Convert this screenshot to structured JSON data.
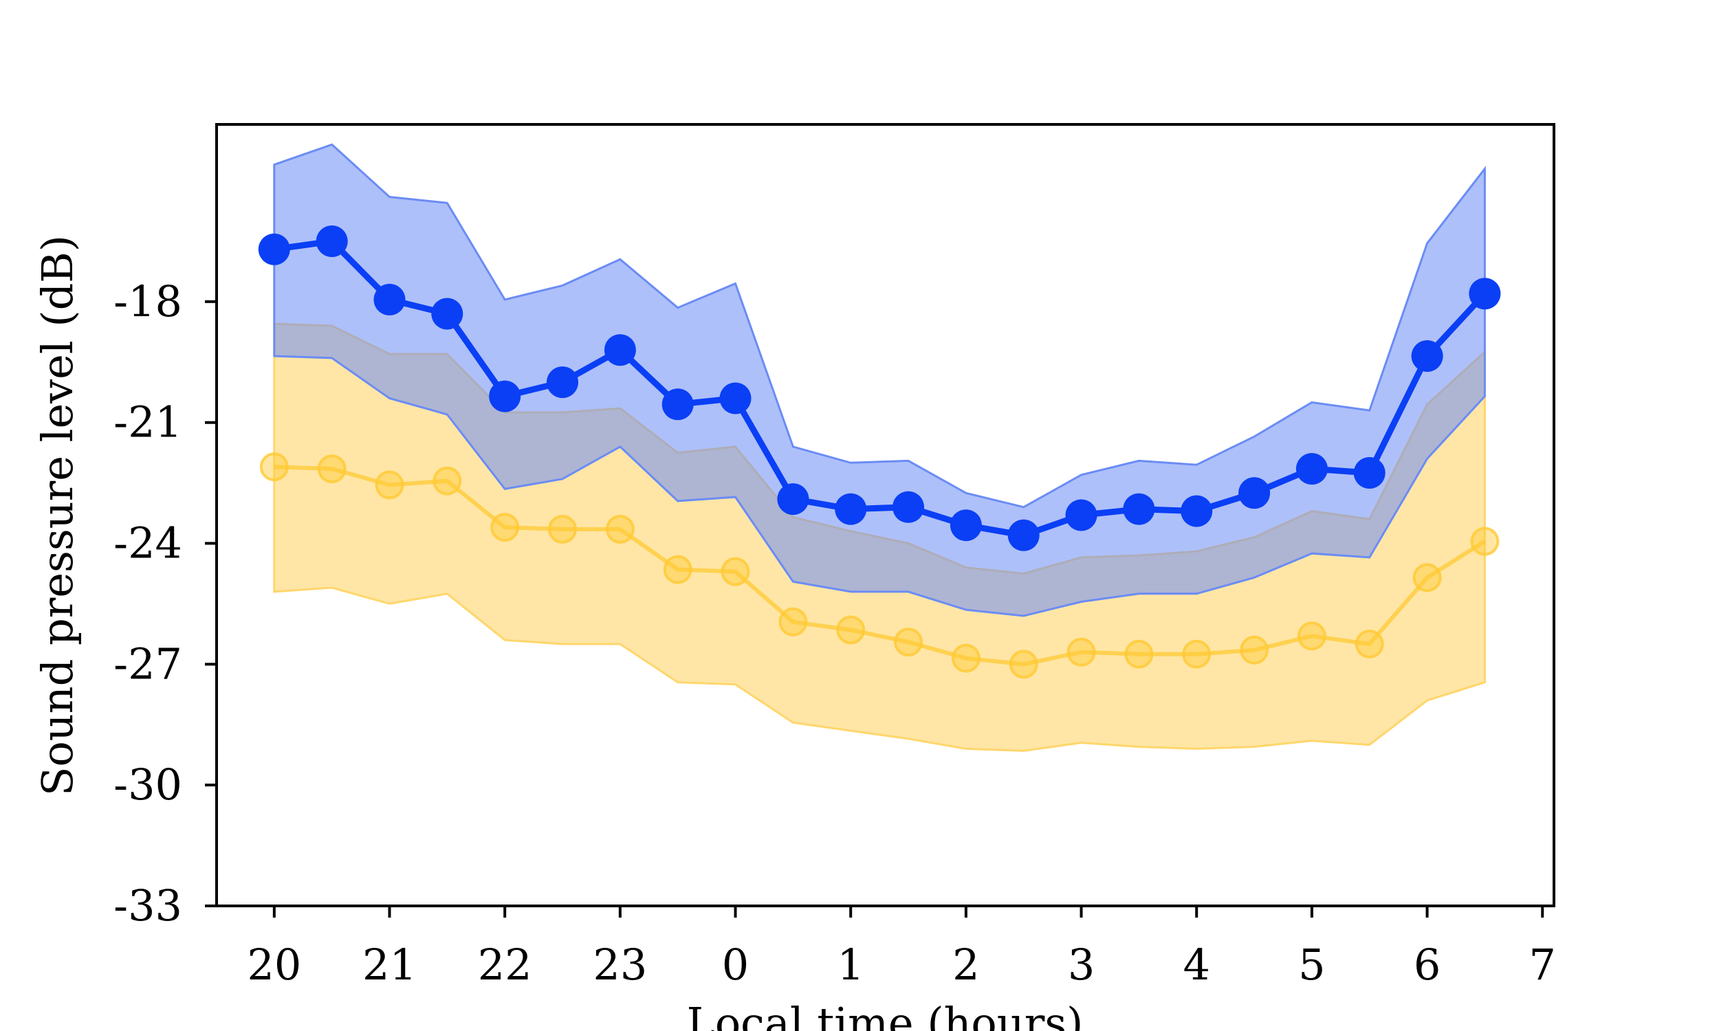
{
  "chart_data": {
    "type": "line",
    "xlabel": "Local time (hours)",
    "ylabel": "Sound pressure level (dB)",
    "xlim": [
      -0.5,
      11.1
    ],
    "ylim": [
      -33,
      -13.6
    ],
    "x_ticks": [
      {
        "value": 0,
        "label": "20"
      },
      {
        "value": 1,
        "label": "21"
      },
      {
        "value": 2,
        "label": "22"
      },
      {
        "value": 3,
        "label": "23"
      },
      {
        "value": 4,
        "label": "0"
      },
      {
        "value": 5,
        "label": "1"
      },
      {
        "value": 6,
        "label": "2"
      },
      {
        "value": 7,
        "label": "3"
      },
      {
        "value": 8,
        "label": "4"
      },
      {
        "value": 9,
        "label": "5"
      },
      {
        "value": 10,
        "label": "6"
      },
      {
        "value": 11,
        "label": "7"
      }
    ],
    "y_ticks": [
      {
        "value": -18,
        "label": "-18"
      },
      {
        "value": -21,
        "label": "-21"
      },
      {
        "value": -24,
        "label": "-24"
      },
      {
        "value": -27,
        "label": "-27"
      },
      {
        "value": -30,
        "label": "-30"
      },
      {
        "value": -33,
        "label": "-33"
      }
    ],
    "x": [
      0,
      0.5,
      1,
      1.5,
      2,
      2.5,
      3,
      3.5,
      4,
      4.5,
      5,
      5.5,
      6,
      6.5,
      7,
      7.5,
      8,
      8.5,
      9,
      9.5,
      10,
      10.5
    ],
    "grid": false,
    "series": [
      {
        "color": "#0a3ff5",
        "band_color": "#6b8cf5",
        "marker": "filled",
        "values": [
          -16.7,
          -16.5,
          -17.95,
          -18.3,
          -20.35,
          -20.0,
          -19.2,
          -20.55,
          -20.4,
          -22.9,
          -23.15,
          -23.1,
          -23.55,
          -23.8,
          -23.3,
          -23.15,
          -23.2,
          -22.75,
          -22.15,
          -22.25,
          -19.35,
          -17.8
        ],
        "upper": [
          -14.6,
          -14.1,
          -15.4,
          -15.55,
          -17.95,
          -17.6,
          -16.95,
          -18.15,
          -17.55,
          -21.6,
          -22.0,
          -21.95,
          -22.75,
          -23.1,
          -22.3,
          -21.95,
          -22.05,
          -21.35,
          -20.5,
          -20.7,
          -16.55,
          -14.7
        ],
        "lower": [
          -19.35,
          -19.4,
          -20.4,
          -20.8,
          -22.65,
          -22.4,
          -21.6,
          -22.95,
          -22.85,
          -24.95,
          -25.2,
          -25.2,
          -25.65,
          -25.8,
          -25.45,
          -25.25,
          -25.25,
          -24.85,
          -24.25,
          -24.35,
          -21.9,
          -20.35
        ]
      },
      {
        "color": "#ffc933",
        "band_color": "#ffd66b",
        "marker": "hollow",
        "values": [
          -22.1,
          -22.15,
          -22.55,
          -22.45,
          -23.6,
          -23.65,
          -23.65,
          -24.65,
          -24.7,
          -25.95,
          -26.15,
          -26.45,
          -26.85,
          -27.0,
          -26.7,
          -26.75,
          -26.75,
          -26.65,
          -26.3,
          -26.5,
          -24.85,
          -23.95
        ],
        "upper": [
          -18.55,
          -18.6,
          -19.3,
          -19.3,
          -20.75,
          -20.75,
          -20.65,
          -21.75,
          -21.6,
          -23.35,
          -23.7,
          -24.0,
          -24.6,
          -24.75,
          -24.35,
          -24.3,
          -24.2,
          -23.85,
          -23.2,
          -23.4,
          -20.55,
          -19.25
        ],
        "lower": [
          -25.2,
          -25.1,
          -25.5,
          -25.25,
          -26.4,
          -26.5,
          -26.5,
          -27.45,
          -27.5,
          -28.45,
          -28.65,
          -28.85,
          -29.1,
          -29.15,
          -28.95,
          -29.05,
          -29.1,
          -29.05,
          -28.9,
          -29.0,
          -27.9,
          -27.45
        ]
      }
    ]
  }
}
